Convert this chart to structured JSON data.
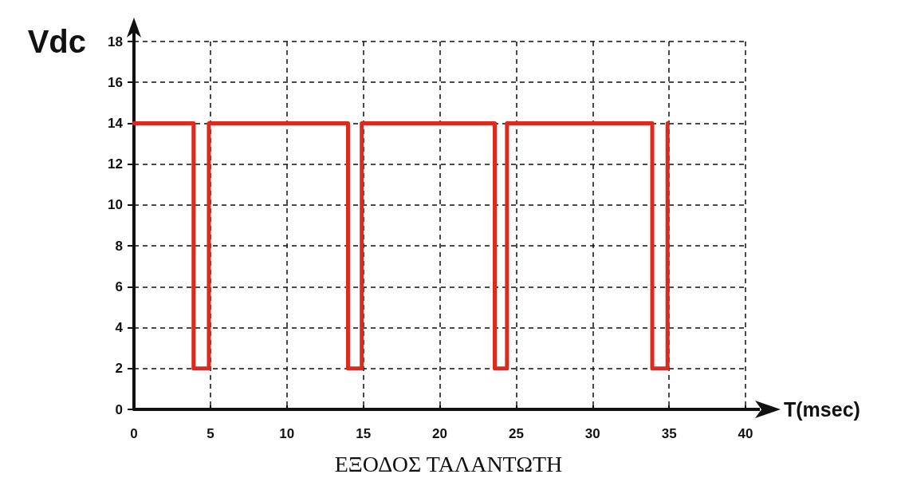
{
  "chart_data": {
    "type": "line",
    "xlabel": "T(msec)",
    "ylabel": "Vdc",
    "annotations": [
      "ΕΞΟΔΟΣ ΤΑΛΑΝΤΩΤΗ"
    ],
    "x": [
      0,
      3.9,
      3.9,
      4.9,
      4.9,
      14,
      14,
      14.9,
      14.9,
      23.6,
      23.6,
      24.4,
      24.4,
      33.9,
      33.9,
      34.9,
      34.9
    ],
    "series": [
      {
        "color": "#dc2a1c",
        "values": [
          14,
          14,
          2,
          2,
          14,
          14,
          2,
          2,
          14,
          14,
          2,
          2,
          14,
          14,
          2,
          2,
          14
        ]
      }
    ],
    "xlim": [
      0,
      40
    ],
    "xticks": [
      0,
      5,
      10,
      15,
      20,
      25,
      30,
      35,
      40
    ],
    "ylim": [
      0,
      18
    ],
    "yticks": [
      0,
      2,
      4,
      6,
      8,
      10,
      12,
      14,
      16,
      18
    ],
    "grid": true,
    "marker": "none",
    "line_style": "solid"
  }
}
